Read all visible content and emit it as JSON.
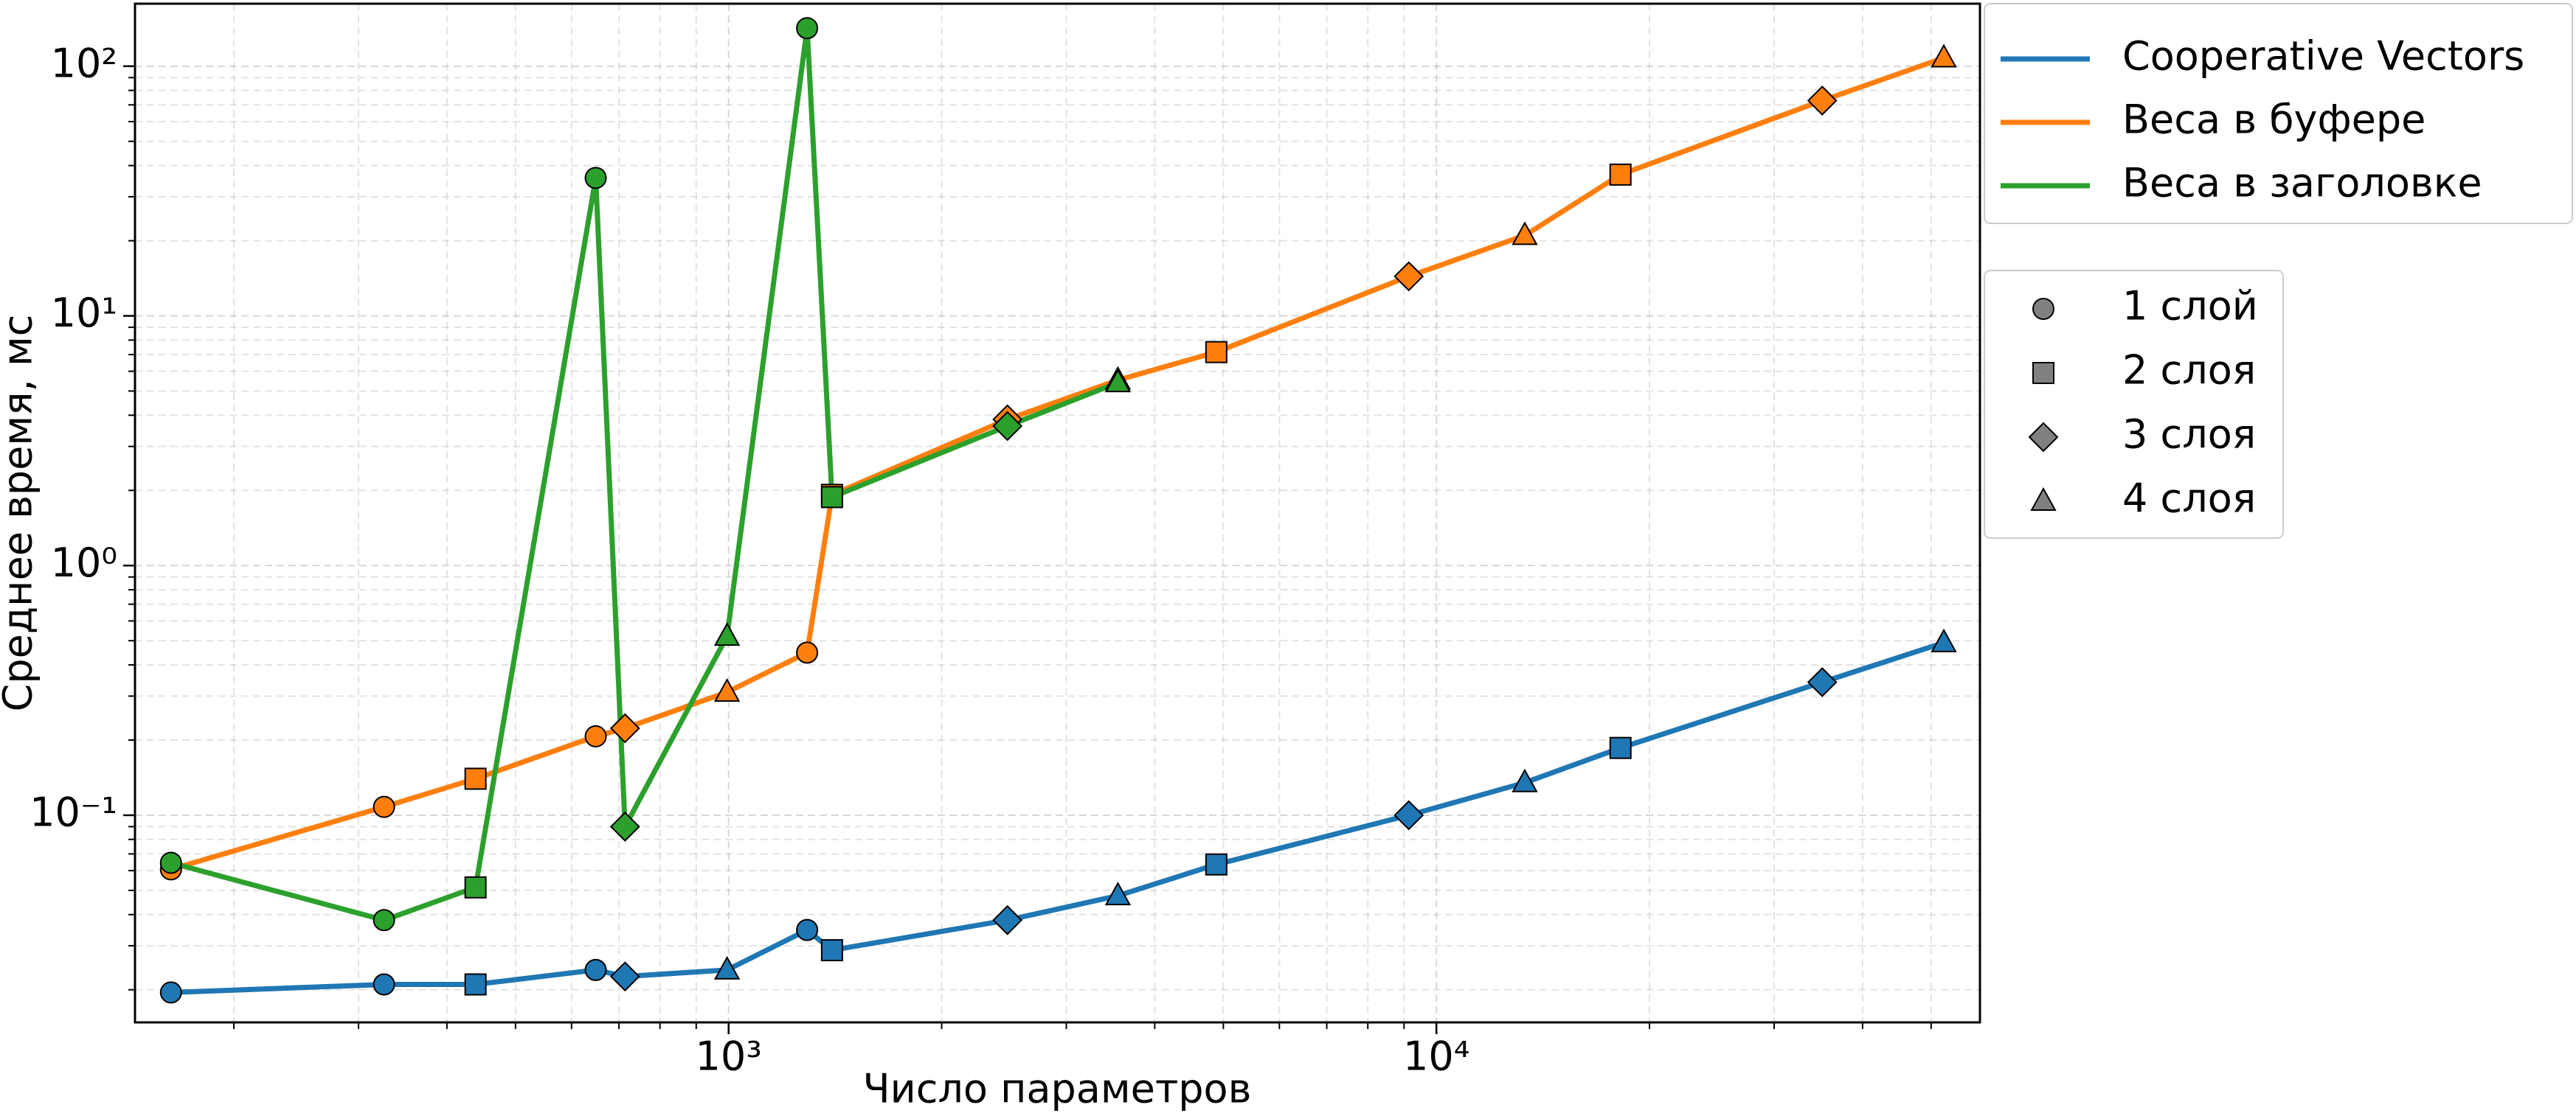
{
  "chart_data": {
    "type": "line",
    "xlabel": "Число параметров",
    "ylabel": "Среднее время, мс",
    "x": [
      163,
      326,
      439,
      649,
      714,
      995,
      1291,
      1400,
      2477,
      3548,
      4887,
      9140,
      13330,
      18200,
      35080,
      52100
    ],
    "markers": [
      "circle",
      "circle",
      "square",
      "circle",
      "diamond",
      "triangle",
      "circle",
      "square",
      "diamond",
      "triangle",
      "square",
      "diamond",
      "triangle",
      "square",
      "diamond",
      "triangle"
    ],
    "series": [
      {
        "name": "Cooperative Vectors",
        "color": "#1f77b4",
        "values": [
          0.0195,
          0.021,
          0.021,
          0.024,
          0.0226,
          0.024,
          0.0347,
          0.0288,
          0.038,
          0.0476,
          0.0635,
          0.1,
          0.135,
          0.186,
          0.341,
          0.491
        ]
      },
      {
        "name": "Веса в буфере",
        "color": "#ff7f0e",
        "values": [
          0.0607,
          0.108,
          0.14,
          0.207,
          0.223,
          0.311,
          0.448,
          1.92,
          3.85,
          5.53,
          7.16,
          14.4,
          21.0,
          36.8,
          72.8,
          108
        ]
      },
      {
        "name": "Веса в заголовке",
        "color": "#2ca02c",
        "values": [
          0.0645,
          0.038,
          0.0514,
          35.7,
          0.09,
          0.521,
          142,
          1.88,
          3.62,
          5.4,
          null,
          null,
          null,
          null,
          null,
          null
        ]
      }
    ],
    "marker_legend": [
      {
        "label": "1 слой",
        "marker": "circle"
      },
      {
        "label": "2 слоя",
        "marker": "square"
      },
      {
        "label": "3 слоя",
        "marker": "diamond"
      },
      {
        "label": "4 слоя",
        "marker": "triangle"
      }
    ],
    "xscale": "log",
    "yscale": "log",
    "xlim": [
      145,
      58600
    ],
    "ylim": [
      0.0148,
      178
    ],
    "xticks": [
      {
        "value": 1000,
        "label": "10³"
      },
      {
        "value": 10000,
        "label": "10⁴"
      }
    ],
    "yticks": [
      {
        "value": 0.1,
        "label": "10⁻¹"
      },
      {
        "value": 1,
        "label": "10⁰"
      },
      {
        "value": 10,
        "label": "10¹"
      },
      {
        "value": 100,
        "label": "10²"
      }
    ],
    "xticks_minor": [
      200,
      300,
      400,
      500,
      600,
      700,
      800,
      900,
      2000,
      3000,
      4000,
      5000,
      6000,
      7000,
      8000,
      9000,
      20000,
      30000,
      40000,
      50000
    ],
    "yticks_minor": [
      0.02,
      0.03,
      0.04,
      0.05,
      0.06,
      0.07,
      0.08,
      0.09,
      0.2,
      0.3,
      0.4,
      0.5,
      0.6,
      0.7,
      0.8,
      0.9,
      2,
      3,
      4,
      5,
      6,
      7,
      8,
      9,
      20,
      30,
      40,
      50,
      60,
      70,
      80,
      90
    ],
    "grid": true
  }
}
